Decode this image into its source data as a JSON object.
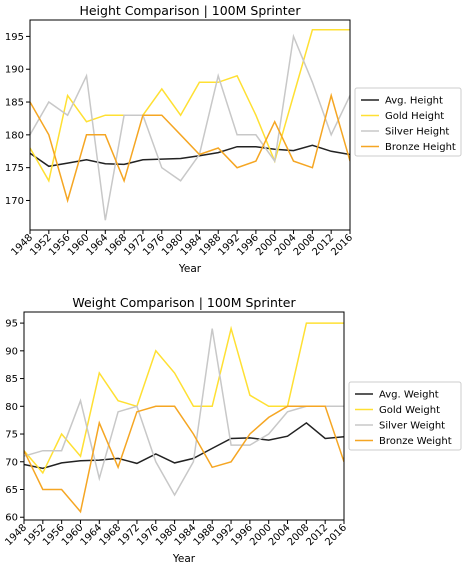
{
  "charts": [
    {
      "type": "line",
      "title": "Height Comparison | 100M Sprinter",
      "xlabel": "Year",
      "ylabel": "",
      "x": [
        1948,
        1952,
        1956,
        1960,
        1964,
        1968,
        1972,
        1976,
        1980,
        1984,
        1988,
        1992,
        1996,
        2000,
        2004,
        2008,
        2012,
        2016
      ],
      "xticks": [
        "1948",
        "1952",
        "1956",
        "1960",
        "1964",
        "1968",
        "1972",
        "1976",
        "1980",
        "1984",
        "1988",
        "1992",
        "1996",
        "2000",
        "2004",
        "2008",
        "2012",
        "2016"
      ],
      "yticks": [
        170,
        175,
        180,
        185,
        190,
        195
      ],
      "ytick_labels": [
        "170",
        "175",
        "180",
        "185",
        "190",
        "195"
      ],
      "ylim": [
        165.5,
        197.5
      ],
      "xlim": [
        1948,
        2016
      ],
      "grid": false,
      "legend_placement": "center-right",
      "series": [
        {
          "name": "Avg. Height",
          "color": "#222222",
          "values": [
            177.2,
            175.2,
            175.7,
            176.2,
            175.6,
            175.5,
            176.2,
            176.3,
            176.4,
            176.8,
            177.3,
            178.2,
            178.2,
            177.8,
            177.6,
            178.4,
            177.5,
            177.0
          ]
        },
        {
          "name": "Gold Height",
          "color": "#ffe033",
          "values": [
            178,
            173,
            186,
            182,
            183,
            183,
            183,
            187,
            183,
            188,
            188,
            189,
            183,
            176,
            186,
            196,
            196,
            196
          ]
        },
        {
          "name": "Silver Height",
          "color": "#c8c8c8",
          "values": [
            180,
            185,
            183,
            189,
            167,
            183,
            183,
            175,
            173,
            177,
            189,
            180,
            180,
            176,
            195,
            188,
            180,
            186
          ]
        },
        {
          "name": "Bronze Height",
          "color": "#f5a623",
          "values": [
            185,
            180,
            170,
            180,
            180,
            173,
            183,
            183,
            180,
            177,
            178,
            175,
            176,
            182,
            176,
            175,
            186,
            176
          ]
        }
      ]
    },
    {
      "type": "line",
      "title": "Weight Comparison | 100M Sprinter",
      "xlabel": "Year",
      "ylabel": "",
      "x": [
        1948,
        1952,
        1956,
        1960,
        1964,
        1968,
        1972,
        1976,
        1980,
        1984,
        1988,
        1992,
        1996,
        2000,
        2004,
        2008,
        2012,
        2016
      ],
      "xticks": [
        "1948",
        "1952",
        "1956",
        "1960",
        "1964",
        "1968",
        "1972",
        "1976",
        "1980",
        "1984",
        "1988",
        "1992",
        "1996",
        "2000",
        "2004",
        "2008",
        "2012",
        "2016"
      ],
      "yticks": [
        60,
        65,
        70,
        75,
        80,
        85,
        90,
        95
      ],
      "ytick_labels": [
        "60",
        "65",
        "70",
        "75",
        "80",
        "85",
        "90",
        "95"
      ],
      "ylim": [
        59.5,
        97
      ],
      "xlim": [
        1948,
        2016
      ],
      "grid": false,
      "legend_placement": "center-right",
      "series": [
        {
          "name": "Avg. Weight",
          "color": "#222222",
          "values": [
            69.5,
            68.8,
            69.8,
            70.2,
            70.3,
            70.6,
            69.7,
            71.4,
            69.8,
            70.6,
            72.4,
            74.2,
            74.3,
            73.9,
            74.6,
            77.0,
            74.2,
            74.5
          ]
        },
        {
          "name": "Gold Weight",
          "color": "#ffe033",
          "values": [
            72,
            68,
            75,
            71,
            86,
            81,
            80,
            90,
            86,
            80,
            80,
            94,
            82,
            80,
            80,
            95,
            95,
            95
          ]
        },
        {
          "name": "Silver Weight",
          "color": "#c8c8c8",
          "values": [
            71,
            72,
            72,
            81,
            67,
            79,
            80,
            70,
            64,
            70,
            94,
            73,
            73,
            75,
            79,
            80,
            80,
            80
          ]
        },
        {
          "name": "Bronze Weight",
          "color": "#f5a623",
          "values": [
            72,
            65,
            65,
            61,
            77,
            69,
            79,
            80,
            80,
            75,
            69,
            70,
            75,
            78,
            80,
            80,
            80,
            70
          ]
        }
      ]
    }
  ]
}
